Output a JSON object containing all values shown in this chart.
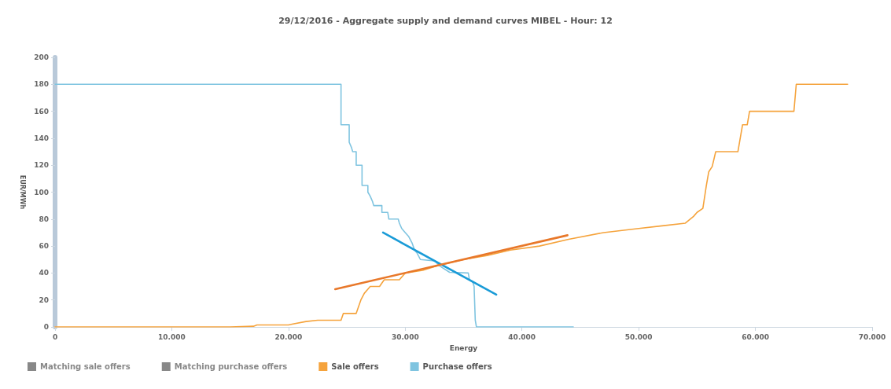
{
  "chart_data": {
    "type": "line",
    "title": "29/12/2016 - Aggregate supply and demand curves MIBEL - Hour: 12",
    "xlabel": "Energy",
    "ylabel": "EUR/MWh",
    "xlim": [
      0,
      70000
    ],
    "xticks": [
      0,
      {
        "value": 10000,
        "label": "10.000"
      },
      {
        "value": 20000,
        "label": "20.000"
      },
      {
        "value": 30000,
        "label": "30.000"
      },
      {
        "value": 40000,
        "label": "40.000"
      },
      {
        "value": 50000,
        "label": "50.000"
      },
      {
        "value": 60000,
        "label": "60.000"
      },
      {
        "value": 70000,
        "label": "70.000"
      }
    ],
    "ylim": [
      0,
      200
    ],
    "yticks": [
      0,
      20,
      40,
      60,
      80,
      100,
      120,
      140,
      160,
      180,
      200
    ],
    "grid": false,
    "legend": "bottom left",
    "marker": "none",
    "line_style": "solid",
    "series": [
      {
        "name": "Matching sale offers",
        "color": "#7a7a7a"
      },
      {
        "name": "Matching purchase offers",
        "color": "#7a7a7a"
      },
      {
        "name": "Sale offers",
        "color": "#f5a33c",
        "x": [
          0,
          15000,
          17000,
          17300,
          20000,
          20300,
          21500,
          22500,
          24500,
          24700,
          25800,
          26000,
          26200,
          26500,
          26800,
          27000,
          27800,
          28200,
          29500,
          30000,
          31500,
          33000,
          35000,
          37000,
          39000,
          41500,
          44000,
          47000,
          50000,
          52000,
          54000,
          54700,
          55000,
          55500,
          55800,
          56000,
          56300,
          56600,
          58500,
          58700,
          58900,
          59300,
          59500,
          63300,
          63400,
          63500,
          67900
        ],
        "values": [
          0,
          0,
          0.5,
          1.5,
          1.5,
          2,
          4,
          5,
          5,
          10,
          10,
          15,
          20,
          25,
          28,
          30,
          30,
          35,
          35,
          40,
          42,
          46,
          50,
          53,
          57,
          60,
          65,
          70,
          73,
          75,
          77,
          82,
          85,
          88,
          105,
          115,
          119,
          130,
          130,
          140,
          150,
          150,
          160,
          160,
          170,
          180,
          180
        ]
      },
      {
        "name": "Purchase offers",
        "color": "#7fc4e0",
        "x": [
          0,
          24500,
          24500,
          25200,
          25200,
          25400,
          25500,
          25800,
          25800,
          26300,
          26300,
          26800,
          26800,
          27000,
          27200,
          27300,
          28000,
          28000,
          28500,
          28600,
          29400,
          29500,
          29700,
          30000,
          30300,
          30600,
          30800,
          31000,
          31300,
          32500,
          33000,
          33800,
          35400,
          35500,
          35800,
          35900,
          36000,
          36100,
          44400
        ],
        "values": [
          180,
          180,
          150,
          150,
          137,
          133,
          130,
          130,
          120,
          120,
          105,
          105,
          100,
          97,
          93,
          90,
          90,
          85,
          85,
          80,
          80,
          77,
          73,
          70,
          67,
          62,
          57,
          55,
          50,
          49,
          45,
          40.5,
          40,
          35,
          33,
          30,
          5,
          0,
          0
        ]
      },
      {
        "color": "#1a9bd7",
        "x": [
          28100,
          37800
        ],
        "values": [
          70,
          24
        ]
      },
      {
        "color": "#e8782a",
        "x": [
          24000,
          43900
        ],
        "values": [
          28,
          68
        ]
      }
    ]
  }
}
